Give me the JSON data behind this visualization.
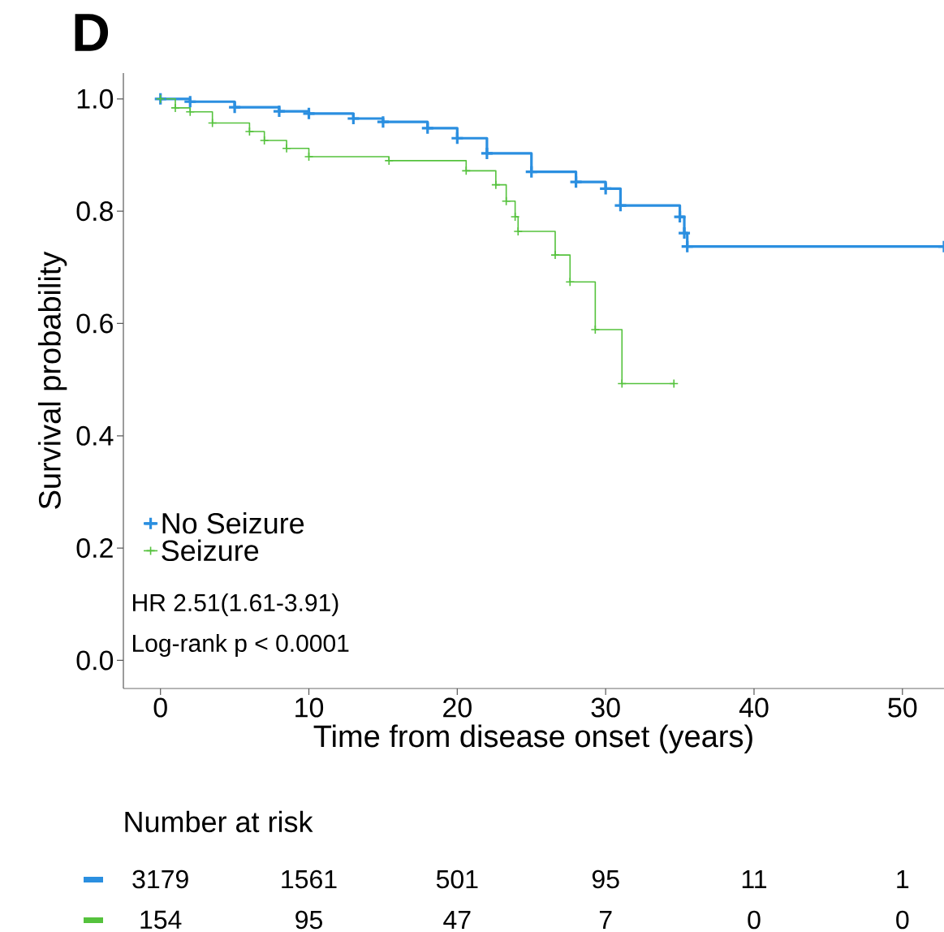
{
  "chart_data": {
    "type": "step",
    "title": "D",
    "xlabel": "Time from disease onset (years)",
    "ylabel": "Survival probability",
    "xlim": [
      -2.5,
      52.8
    ],
    "ylim": [
      -0.05,
      1.046
    ],
    "xticks": [
      0,
      10,
      20,
      30,
      40,
      50
    ],
    "yticks": [
      {
        "value": 0,
        "label": "0.0"
      },
      0.2,
      0.4,
      0.6,
      0.8,
      {
        "value": 1,
        "label": "1.0"
      }
    ],
    "legend": "bottom left",
    "marker": "cross",
    "grid": false,
    "series": [
      {
        "name": "No Seizure",
        "color": "#2b8fe0",
        "x": [
          0,
          2,
          5,
          8,
          10,
          13,
          15,
          18,
          20,
          22,
          25,
          28,
          30,
          31,
          35,
          35.3,
          35.5,
          52.8
        ],
        "values": [
          1.0,
          0.995,
          0.985,
          0.978,
          0.974,
          0.965,
          0.959,
          0.948,
          0.93,
          0.903,
          0.87,
          0.852,
          0.84,
          0.81,
          0.79,
          0.761,
          0.737,
          0.737
        ]
      },
      {
        "name": "Seizure",
        "color": "#55c23d",
        "x": [
          0,
          1,
          2,
          3.5,
          6,
          7,
          8.5,
          10,
          15.4,
          20.6,
          22.6,
          23.3,
          23.9,
          24.1,
          26.6,
          27.6,
          29.3,
          31.1,
          34.6
        ],
        "values": [
          1.0,
          0.984,
          0.977,
          0.957,
          0.942,
          0.926,
          0.912,
          0.897,
          0.89,
          0.872,
          0.847,
          0.818,
          0.79,
          0.764,
          0.722,
          0.674,
          0.589,
          0.493,
          0.493
        ]
      }
    ],
    "annotations": [
      "HR 2.51(1.61-3.91)",
      "Log-rank p < 0.0001",
      "Number at risk",
      "3179",
      "1561",
      "501",
      "95",
      "11",
      "1",
      "154",
      "95",
      "47",
      "7",
      "0",
      "0"
    ]
  }
}
